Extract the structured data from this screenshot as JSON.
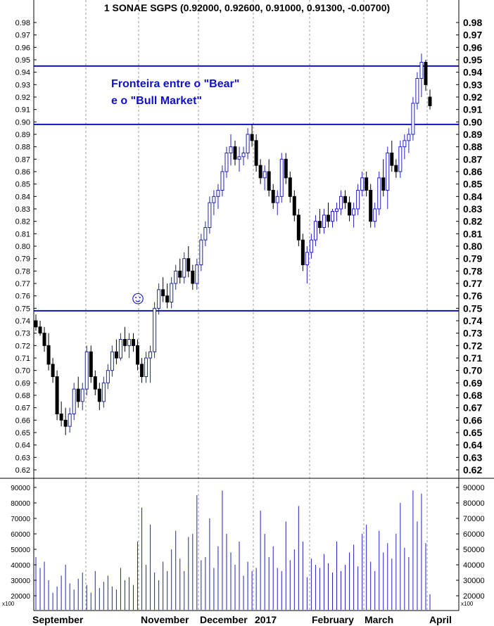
{
  "chart_data": {
    "type": "candlestick",
    "title": "1 SONAE SGPS (0.92000, 0.92600, 0.91000, 0.91300, -0.00700)",
    "annotation_lines": [
      "Fronteira entre o \"Bear\"",
      "e o \"Bull Market\""
    ],
    "smiley": "☺",
    "price_axis": {
      "ylim": [
        0.615,
        0.985
      ],
      "ticks": [
        "0.98",
        "0.97",
        "0.96",
        "0.95",
        "0.94",
        "0.93",
        "0.92",
        "0.91",
        "0.90",
        "0.89",
        "0.88",
        "0.87",
        "0.86",
        "0.85",
        "0.84",
        "0.83",
        "0.82",
        "0.81",
        "0.80",
        "0.79",
        "0.78",
        "0.77",
        "0.76",
        "0.75",
        "0.74",
        "0.73",
        "0.72",
        "0.71",
        "0.70",
        "0.69",
        "0.68",
        "0.67",
        "0.66",
        "0.65",
        "0.64",
        "0.63",
        "0.62"
      ]
    },
    "volume_axis": {
      "ylim": [
        15000,
        93000
      ],
      "ticks": [
        "90000",
        "80000",
        "70000",
        "60000",
        "50000",
        "40000",
        "30000",
        "20000"
      ],
      "unit_label": "x100"
    },
    "months": [
      "September",
      "November",
      "December",
      "2017",
      "February",
      "March",
      "April"
    ],
    "horizontal_levels": [
      0.945,
      0.898,
      0.748
    ],
    "ohlc": [
      [
        0.74,
        0.745,
        0.732,
        0.735
      ],
      [
        0.735,
        0.74,
        0.728,
        0.73
      ],
      [
        0.73,
        0.735,
        0.715,
        0.72
      ],
      [
        0.72,
        0.73,
        0.7,
        0.705
      ],
      [
        0.705,
        0.71,
        0.69,
        0.695
      ],
      [
        0.695,
        0.7,
        0.66,
        0.665
      ],
      [
        0.665,
        0.675,
        0.655,
        0.66
      ],
      [
        0.66,
        0.67,
        0.648,
        0.655
      ],
      [
        0.655,
        0.67,
        0.65,
        0.665
      ],
      [
        0.665,
        0.69,
        0.66,
        0.685
      ],
      [
        0.685,
        0.695,
        0.67,
        0.675
      ],
      [
        0.675,
        0.69,
        0.668,
        0.685
      ],
      [
        0.685,
        0.72,
        0.68,
        0.715
      ],
      [
        0.715,
        0.72,
        0.69,
        0.695
      ],
      [
        0.695,
        0.7,
        0.68,
        0.685
      ],
      [
        0.685,
        0.69,
        0.668,
        0.675
      ],
      [
        0.675,
        0.695,
        0.67,
        0.69
      ],
      [
        0.69,
        0.705,
        0.685,
        0.7
      ],
      [
        0.7,
        0.72,
        0.695,
        0.715
      ],
      [
        0.715,
        0.725,
        0.705,
        0.71
      ],
      [
        0.71,
        0.73,
        0.708,
        0.725
      ],
      [
        0.725,
        0.735,
        0.715,
        0.72
      ],
      [
        0.72,
        0.73,
        0.71,
        0.725
      ],
      [
        0.725,
        0.73,
        0.715,
        0.72
      ],
      [
        0.72,
        0.725,
        0.7,
        0.705
      ],
      [
        0.705,
        0.71,
        0.69,
        0.695
      ],
      [
        0.695,
        0.715,
        0.69,
        0.71
      ],
      [
        0.71,
        0.72,
        0.69,
        0.715
      ],
      [
        0.715,
        0.755,
        0.71,
        0.75
      ],
      [
        0.75,
        0.77,
        0.745,
        0.765
      ],
      [
        0.765,
        0.775,
        0.755,
        0.76
      ],
      [
        0.76,
        0.77,
        0.75,
        0.755
      ],
      [
        0.755,
        0.775,
        0.75,
        0.77
      ],
      [
        0.77,
        0.785,
        0.765,
        0.78
      ],
      [
        0.78,
        0.79,
        0.77,
        0.775
      ],
      [
        0.775,
        0.795,
        0.77,
        0.79
      ],
      [
        0.79,
        0.8,
        0.775,
        0.78
      ],
      [
        0.78,
        0.785,
        0.765,
        0.77
      ],
      [
        0.77,
        0.79,
        0.765,
        0.785
      ],
      [
        0.785,
        0.81,
        0.78,
        0.805
      ],
      [
        0.805,
        0.82,
        0.8,
        0.815
      ],
      [
        0.815,
        0.84,
        0.81,
        0.835
      ],
      [
        0.835,
        0.845,
        0.825,
        0.84
      ],
      [
        0.84,
        0.85,
        0.83,
        0.845
      ],
      [
        0.845,
        0.865,
        0.84,
        0.86
      ],
      [
        0.86,
        0.88,
        0.855,
        0.875
      ],
      [
        0.875,
        0.89,
        0.865,
        0.88
      ],
      [
        0.88,
        0.885,
        0.865,
        0.87
      ],
      [
        0.87,
        0.88,
        0.86,
        0.872
      ],
      [
        0.872,
        0.88,
        0.865,
        0.875
      ],
      [
        0.875,
        0.895,
        0.87,
        0.89
      ],
      [
        0.89,
        0.898,
        0.88,
        0.885
      ],
      [
        0.885,
        0.89,
        0.86,
        0.865
      ],
      [
        0.865,
        0.87,
        0.85,
        0.855
      ],
      [
        0.855,
        0.865,
        0.845,
        0.86
      ],
      [
        0.86,
        0.87,
        0.84,
        0.845
      ],
      [
        0.845,
        0.85,
        0.83,
        0.835
      ],
      [
        0.835,
        0.845,
        0.825,
        0.84
      ],
      [
        0.84,
        0.875,
        0.835,
        0.87
      ],
      [
        0.87,
        0.875,
        0.85,
        0.855
      ],
      [
        0.855,
        0.86,
        0.835,
        0.84
      ],
      [
        0.84,
        0.845,
        0.82,
        0.825
      ],
      [
        0.825,
        0.83,
        0.8,
        0.805
      ],
      [
        0.805,
        0.81,
        0.78,
        0.785
      ],
      [
        0.785,
        0.8,
        0.77,
        0.795
      ],
      [
        0.795,
        0.81,
        0.79,
        0.805
      ],
      [
        0.805,
        0.825,
        0.8,
        0.82
      ],
      [
        0.82,
        0.83,
        0.81,
        0.815
      ],
      [
        0.815,
        0.83,
        0.81,
        0.825
      ],
      [
        0.825,
        0.835,
        0.815,
        0.82
      ],
      [
        0.82,
        0.83,
        0.815,
        0.828
      ],
      [
        0.828,
        0.835,
        0.82,
        0.83
      ],
      [
        0.83,
        0.845,
        0.825,
        0.84
      ],
      [
        0.84,
        0.845,
        0.83,
        0.835
      ],
      [
        0.835,
        0.84,
        0.82,
        0.825
      ],
      [
        0.825,
        0.835,
        0.815,
        0.83
      ],
      [
        0.83,
        0.85,
        0.825,
        0.845
      ],
      [
        0.845,
        0.86,
        0.84,
        0.855
      ],
      [
        0.855,
        0.86,
        0.84,
        0.845
      ],
      [
        0.845,
        0.85,
        0.815,
        0.82
      ],
      [
        0.82,
        0.835,
        0.815,
        0.83
      ],
      [
        0.83,
        0.86,
        0.825,
        0.855
      ],
      [
        0.855,
        0.87,
        0.84,
        0.845
      ],
      [
        0.845,
        0.88,
        0.83,
        0.875
      ],
      [
        0.875,
        0.885,
        0.86,
        0.865
      ],
      [
        0.865,
        0.87,
        0.855,
        0.86
      ],
      [
        0.86,
        0.885,
        0.855,
        0.88
      ],
      [
        0.88,
        0.89,
        0.87,
        0.885
      ],
      [
        0.885,
        0.895,
        0.875,
        0.89
      ],
      [
        0.89,
        0.92,
        0.885,
        0.915
      ],
      [
        0.915,
        0.94,
        0.91,
        0.935
      ],
      [
        0.935,
        0.955,
        0.92,
        0.948
      ],
      [
        0.948,
        0.95,
        0.925,
        0.93
      ],
      [
        0.92,
        0.926,
        0.91,
        0.913
      ]
    ],
    "volume": [
      45000,
      38000,
      42000,
      30000,
      22000,
      26000,
      33000,
      40000,
      28000,
      24000,
      31000,
      35000,
      27000,
      22000,
      36000,
      25000,
      29000,
      33000,
      26000,
      24000,
      38000,
      30000,
      32000,
      27000,
      55000,
      77000,
      40000,
      66000,
      35000,
      30000,
      42000,
      36000,
      50000,
      62000,
      44000,
      36000,
      58000,
      60000,
      85000,
      43000,
      45000,
      70000,
      38000,
      52000,
      88000,
      60000,
      48000,
      40000,
      55000,
      33000,
      42000,
      36000,
      38000,
      75000,
      60000,
      45000,
      52000,
      38000,
      36000,
      68000,
      43000,
      50000,
      78000,
      55000,
      32000,
      44000,
      40000,
      38000,
      47000,
      41000,
      35000,
      55000,
      36000,
      40000,
      48000,
      53000,
      39000,
      60000,
      66000,
      42000,
      36000,
      62000,
      48000,
      54000,
      44000,
      60000,
      80000,
      51000,
      45000,
      88000,
      68000,
      86000,
      54000,
      21000
    ]
  }
}
